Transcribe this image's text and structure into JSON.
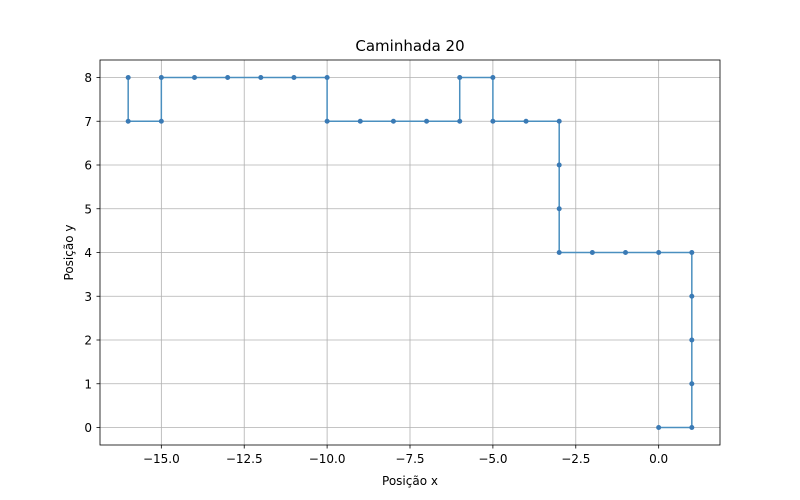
{
  "chart_data": {
    "type": "line",
    "title": "Caminhada 20",
    "xlabel": "Posição x",
    "ylabel": "Posição y",
    "xlim": [
      -16.85,
      1.85
    ],
    "ylim": [
      -0.4,
      8.4
    ],
    "xticks": [
      -15.0,
      -12.5,
      -10.0,
      -7.5,
      -5.0,
      -2.5,
      0.0
    ],
    "xtick_labels": [
      "−15.0",
      "−12.5",
      "−10.0",
      "−7.5",
      "−5.0",
      "−2.5",
      "0.0"
    ],
    "yticks": [
      0,
      1,
      2,
      3,
      4,
      5,
      6,
      7,
      8
    ],
    "ytick_labels": [
      "0",
      "1",
      "2",
      "3",
      "4",
      "5",
      "6",
      "7",
      "8"
    ],
    "grid": true,
    "color": "#4a8fbf",
    "marker_color": "#3a7ab5",
    "series": [
      {
        "x": [
          0,
          1,
          1,
          1,
          1,
          1,
          0,
          -1,
          -2,
          -3,
          -3,
          -3,
          -3,
          -4,
          -5,
          -5,
          -6,
          -6,
          -7,
          -8,
          -9,
          -10,
          -10,
          -11,
          -12,
          -13,
          -14,
          -15,
          -15,
          -16,
          -16
        ],
        "y": [
          0,
          0,
          1,
          2,
          3,
          4,
          4,
          4,
          4,
          4,
          5,
          6,
          7,
          7,
          7,
          8,
          8,
          7,
          7,
          7,
          7,
          7,
          8,
          8,
          8,
          8,
          8,
          8,
          7,
          7,
          8
        ]
      }
    ]
  }
}
